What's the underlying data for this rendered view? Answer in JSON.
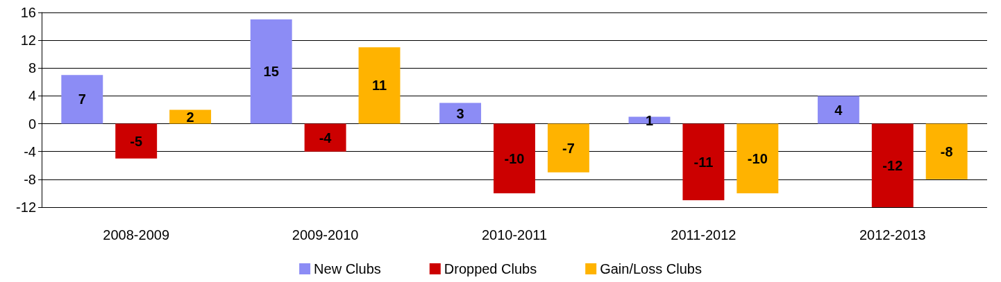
{
  "chart_data": {
    "type": "bar",
    "categories": [
      "2008-2009",
      "2009-2010",
      "2010-2011",
      "2011-2012",
      "2012-2013"
    ],
    "series": [
      {
        "name": "New Clubs",
        "color": "#8c8cf5",
        "values": [
          7,
          15,
          3,
          1,
          4
        ]
      },
      {
        "name": "Dropped Clubs",
        "color": "#cc0000",
        "values": [
          -5,
          -4,
          -10,
          -11,
          -12
        ]
      },
      {
        "name": "Gain/Loss Clubs",
        "color": "#ffb300",
        "values": [
          2,
          11,
          -7,
          -10,
          -8
        ]
      }
    ],
    "ylim": [
      -12,
      16
    ],
    "yticks": [
      -12,
      -8,
      -4,
      0,
      4,
      8,
      12,
      16
    ],
    "grid": "y",
    "legend": "bottom",
    "data_labels": true
  }
}
